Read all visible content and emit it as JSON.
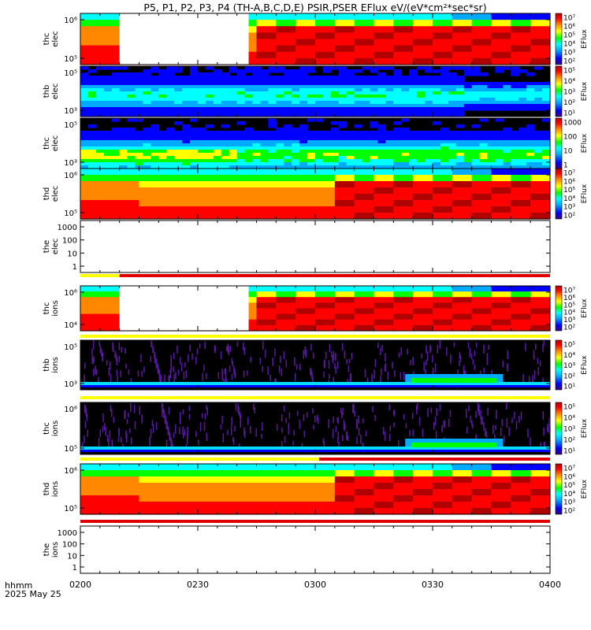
{
  "title": "P5, P1, P2, P3, P4 (TH-A,B,C,D,E) PSIR,PSER EFlux eV/(eV*cm²*sec*sr)",
  "footer": {
    "time_label": "hhmm",
    "date_label": "2025 May 25"
  },
  "colorbar_label": "EFlux",
  "chart_data": {
    "type": "heatmap",
    "title": "P5, P1, P2, P3, P4 (TH-A,B,C,D,E) PSIR,PSER EFlux eV/(eV*cm²*sec*sr)",
    "x_ticks": [
      "0200",
      "0230",
      "0300",
      "0330",
      "0400"
    ],
    "x_range": [
      "0200",
      "0400"
    ],
    "panels": [
      {
        "ylabel": [
          "thc",
          "elec"
        ],
        "y_ticks": [
          "10⁶",
          "10⁵"
        ],
        "cbar_ticks": [
          "10⁷",
          "10⁶",
          "10⁵",
          "10⁴",
          "10³",
          "10²"
        ],
        "cbar_label": "EFlux",
        "gap": [
          "0210",
          "0243"
        ],
        "style": "hot",
        "switch": "0243"
      },
      {
        "ylabel": [
          "thb",
          "elec"
        ],
        "y_ticks": [
          "10⁵",
          "10³"
        ],
        "cbar_ticks": [
          "10⁵",
          "10⁴",
          "10³",
          "10²",
          "10¹"
        ],
        "cbar_label": "EFlux",
        "style": "blue"
      },
      {
        "ylabel": [
          "thc",
          "elec"
        ],
        "y_ticks": [
          "10⁵",
          "10³"
        ],
        "cbar_ticks": [
          "1000",
          "100",
          "10",
          "1"
        ],
        "cbar_label": "EFlux",
        "style": "cyan"
      },
      {
        "ylabel": [
          "thd",
          "elec"
        ],
        "y_ticks": [
          "10⁶",
          "10⁵"
        ],
        "cbar_ticks": [
          "10⁷",
          "10⁶",
          "10⁵",
          "10⁴",
          "10³",
          "10²"
        ],
        "cbar_label": "EFlux",
        "style": "hot",
        "switch": "0301"
      },
      {
        "ylabel": [
          "the",
          "elec"
        ],
        "y_ticks": [
          "1000",
          "100",
          "10",
          "1"
        ],
        "style": "empty"
      },
      {
        "ylabel": [
          "thc",
          "ions"
        ],
        "y_ticks": [
          "10⁶",
          "10⁴"
        ],
        "cbar_ticks": [
          "10⁷",
          "10⁶",
          "10⁵",
          "10⁴",
          "10³",
          "10²"
        ],
        "cbar_label": "EFlux",
        "gap": [
          "0210",
          "0243"
        ],
        "style": "hot",
        "switch": "0243"
      },
      {
        "ylabel": [
          "thb",
          "ions"
        ],
        "y_ticks": [
          "10⁵",
          "10³"
        ],
        "cbar_ticks": [
          "10⁵",
          "10⁴",
          "10³",
          "10²",
          "10¹"
        ],
        "cbar_label": "EFlux",
        "style": "sparse"
      },
      {
        "ylabel": [
          "thc",
          "ions"
        ],
        "y_ticks": [
          "10⁶",
          "10⁵"
        ],
        "cbar_ticks": [
          "10⁵",
          "10⁴",
          "10³",
          "10²",
          "10¹"
        ],
        "cbar_label": "EFlux",
        "style": "sparse"
      },
      {
        "ylabel": [
          "thd",
          "ions"
        ],
        "y_ticks": [
          "10⁶",
          "10⁵"
        ],
        "cbar_ticks": [
          "10⁷",
          "10⁶",
          "10⁵",
          "10⁴",
          "10³",
          "10²"
        ],
        "cbar_label": "EFlux",
        "style": "hot",
        "switch": "0301"
      },
      {
        "ylabel": [
          "the",
          "ions"
        ],
        "y_ticks": [
          "1000",
          "100",
          "10",
          "1"
        ],
        "style": "empty"
      }
    ],
    "mode_bars": [
      {
        "after_panel": 4,
        "segments": [
          {
            "from": "0200",
            "to": "0210",
            "color": "#ffff00"
          },
          {
            "from": "0210",
            "to": "0400",
            "color": "#e00000"
          }
        ]
      },
      {
        "after_panel": 5,
        "segments": [
          {
            "from": "0200",
            "to": "0400",
            "color": "#ffff00"
          }
        ]
      },
      {
        "after_panel": 6,
        "segments": [
          {
            "from": "0200",
            "to": "0400",
            "color": "#ffff00"
          }
        ]
      },
      {
        "after_panel": 7,
        "segments": [
          {
            "from": "0200",
            "to": "0301",
            "color": "#ffff00"
          },
          {
            "from": "0301",
            "to": "0400",
            "color": "#e00000"
          }
        ]
      },
      {
        "after_panel": 8,
        "segments": [
          {
            "from": "0200",
            "to": "0400",
            "color": "#e00000"
          }
        ]
      }
    ],
    "colors": {
      "rainbow": [
        "#3b0080",
        "#0000ff",
        "#00aaff",
        "#00ffff",
        "#00ff00",
        "#ffff00",
        "#ff8800",
        "#ff0000",
        "#b00000"
      ],
      "white": "#ffffff",
      "black": "#000000"
    }
  }
}
